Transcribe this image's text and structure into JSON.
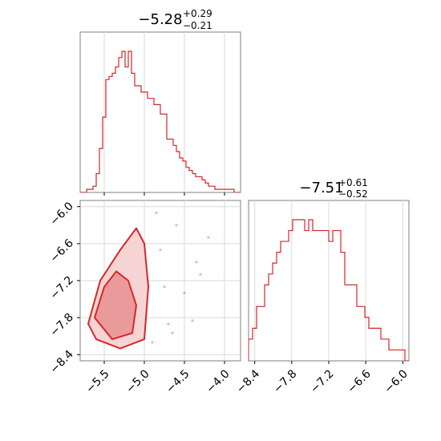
{
  "colors": {
    "accent": "#d62728",
    "fill_light": "#f6d4d4",
    "fill_dark": "#ea9a9a",
    "grid": "#d9d9d9",
    "frame": "#7f7f7f"
  },
  "chart_data": [
    {
      "type": "histogram",
      "parameter_index": 0,
      "title": {
        "median": "−5.28",
        "upper": "+0.29",
        "lower": "−0.21"
      },
      "xlim": [
        -5.8,
        -3.8
      ],
      "xticks": [
        -5.5,
        -5.0,
        -4.5,
        -4.0
      ],
      "bin_edges": [
        -5.8,
        -3.8
      ],
      "counts": [
        0,
        0,
        1,
        1,
        2,
        6,
        14,
        24,
        36,
        37,
        38,
        40,
        43,
        45,
        40,
        45,
        38,
        34,
        34,
        32,
        32,
        30,
        30,
        28,
        28,
        25,
        25,
        17,
        17,
        15,
        13,
        11,
        10,
        8,
        7,
        6,
        5,
        5,
        4,
        3,
        2,
        2,
        1,
        1,
        1,
        1,
        1,
        1,
        0,
        0
      ]
    },
    {
      "type": "histogram",
      "parameter_index": 1,
      "title": {
        "median": "−7.51",
        "upper": "+0.61",
        "lower": "−0.52"
      },
      "xlim": [
        -8.5,
        -5.9
      ],
      "xticks": [
        -8.4,
        -7.8,
        -7.2,
        -6.6,
        -6.0
      ],
      "tick_labels": [
        "−8.4",
        "−7.8",
        "−7.2",
        "−6.6",
        "−6.0"
      ],
      "bin_edges": [
        -8.5,
        -5.9
      ],
      "counts": [
        2,
        3,
        5,
        5,
        7,
        8,
        9,
        10,
        11,
        11,
        12,
        13,
        13,
        13,
        12,
        13,
        12,
        12,
        12,
        12,
        11,
        12,
        12,
        10,
        7,
        7,
        7,
        5,
        5,
        4,
        3,
        3,
        3,
        2,
        2,
        1,
        1,
        1,
        1,
        0
      ]
    },
    {
      "type": "contour2d",
      "parameter_x": 0,
      "parameter_y": 1,
      "xlim": [
        -5.8,
        -3.8
      ],
      "ylim": [
        -8.5,
        -5.9
      ],
      "xticks": [
        -5.5,
        -5.0,
        -4.5,
        -4.0
      ],
      "yticks": [
        -6.0,
        -6.6,
        -7.2,
        -7.8,
        -8.4
      ],
      "x_tick_labels": [
        "−5.5",
        "−5.0",
        "−4.5",
        "−4.0"
      ],
      "y_tick_labels": [
        "−6.0",
        "−6.6",
        "−7.2",
        "−7.8",
        "−8.4"
      ],
      "levels": [
        "outer",
        "inner"
      ],
      "regions": {
        "outer": [
          [
            -5.7,
            -7.9
          ],
          [
            -5.55,
            -7.2
          ],
          [
            -5.3,
            -6.7
          ],
          [
            -5.1,
            -6.35
          ],
          [
            -5.0,
            -6.6
          ],
          [
            -4.95,
            -7.3
          ],
          [
            -5.0,
            -8.15
          ],
          [
            -5.3,
            -8.3
          ],
          [
            -5.6,
            -8.15
          ]
        ],
        "inner": [
          [
            -5.62,
            -7.8
          ],
          [
            -5.5,
            -7.3
          ],
          [
            -5.35,
            -7.05
          ],
          [
            -5.2,
            -7.2
          ],
          [
            -5.1,
            -7.6
          ],
          [
            -5.15,
            -8.05
          ],
          [
            -5.4,
            -8.15
          ]
        ]
      },
      "scatter": [
        [
          -4.6,
          -6.3
        ],
        [
          -4.8,
          -6.7
        ],
        [
          -4.3,
          -7.1
        ],
        [
          -4.7,
          -7.9
        ],
        [
          -4.9,
          -8.2
        ],
        [
          -4.5,
          -7.4
        ],
        [
          -4.2,
          -6.5
        ],
        [
          -4.65,
          -8.05
        ],
        [
          -4.85,
          -6.1
        ],
        [
          -4.4,
          -7.85
        ],
        [
          -4.35,
          -6.9
        ],
        [
          -4.75,
          -7.3
        ]
      ]
    }
  ]
}
